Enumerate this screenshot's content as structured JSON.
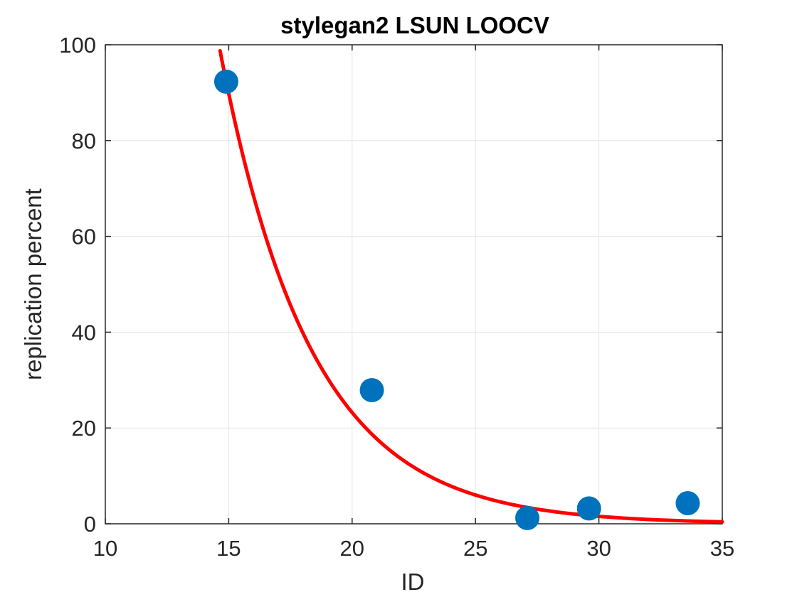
{
  "chart_data": {
    "type": "scatter",
    "title": "stylegan2 LSUN LOOCV",
    "xlabel": "ID",
    "ylabel": "replication percent",
    "xlim": [
      10,
      35
    ],
    "ylim": [
      0,
      100
    ],
    "xticks": [
      10,
      15,
      20,
      25,
      30,
      35
    ],
    "yticks": [
      0,
      20,
      40,
      60,
      80,
      100
    ],
    "grid": true,
    "box": true,
    "series": [
      {
        "kind": "scatter",
        "color": "#0072bd",
        "points": [
          {
            "x": 14.9,
            "y": 92.3
          },
          {
            "x": 20.8,
            "y": 27.9
          },
          {
            "x": 27.1,
            "y": 1.2
          },
          {
            "x": 29.6,
            "y": 3.2
          },
          {
            "x": 33.6,
            "y": 4.3
          }
        ]
      },
      {
        "kind": "line",
        "color": "#ff0000",
        "x_range": [
          14.65,
          35
        ],
        "model": "exponential decay fit y = a·exp(-b·x)",
        "a": 5195,
        "b": 0.2705
      }
    ]
  }
}
